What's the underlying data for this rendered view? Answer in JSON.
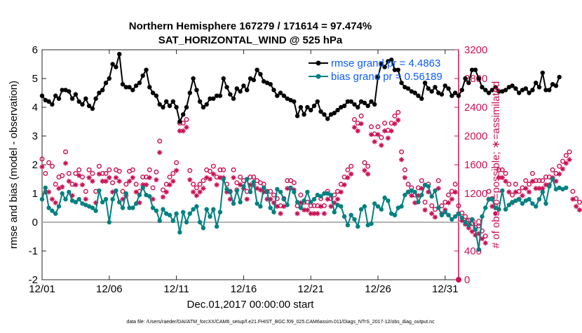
{
  "title_line1": "Northern Hemisphere 167279 / 171614 = 97.474%",
  "title_line2": "SAT_HORIZONTAL_WIND @ 525 hPa",
  "xlabel": "Dec.01,2017 00:00:00 start",
  "ylabel_left": "rmse and bias (model - observation)",
  "ylabel_right": "# of obs: o=possible; ∗=assimilated",
  "footer": "data file: /Users/raeder/DAI/ATM_forcXX/CAM6_setup/f.e21.FHIST_BGC.f09_025.CAM6assim.011/Diags_NTrS_2017-12/obs_diag_output.nc",
  "legend": {
    "rmse": "rmse grand pr = 4.4863",
    "bias": "bias grand pr = 0.56189"
  },
  "colors": {
    "rmse": "#000000",
    "bias": "#008080",
    "count": "#cc1155",
    "zero": "#b3b3b3",
    "legend_text": "#0a5cff"
  },
  "chart_data": {
    "type": "line",
    "x_tick_labels": [
      "12/01",
      "12/06",
      "12/11",
      "12/16",
      "12/21",
      "12/26",
      "12/31"
    ],
    "x_tick_days": [
      1,
      6,
      11,
      16,
      21,
      26,
      31
    ],
    "xlim": [
      1,
      32
    ],
    "ylim_left": [
      -2,
      6
    ],
    "y_ticks_left": [
      "-2",
      "-1",
      "0",
      "1",
      "2",
      "3",
      "4",
      "5",
      "6"
    ],
    "ylim_right": [
      0,
      3200
    ],
    "y_ticks_right": [
      "0",
      "400",
      "800",
      "1200",
      "1600",
      "2000",
      "2400",
      "2800",
      "3200"
    ],
    "grid": false,
    "legend_position": "top-right",
    "x_step_days": 0.25,
    "series": [
      {
        "name": "rmse",
        "axis": "left",
        "marker": "circle",
        "values": [
          4.4,
          4.25,
          4.2,
          4.1,
          4.4,
          4.3,
          4.6,
          4.6,
          4.55,
          4.3,
          4.45,
          4.2,
          4.1,
          4.3,
          4.05,
          3.95,
          4.3,
          4.5,
          4.6,
          4.85,
          5.0,
          5.5,
          5.4,
          5.85,
          4.8,
          4.7,
          4.7,
          4.6,
          4.75,
          4.85,
          5.1,
          5.3,
          4.7,
          4.5,
          4.4,
          4.1,
          4.0,
          4.2,
          4.05,
          4.2,
          4.0,
          3.5,
          3.75,
          4.0,
          4.5,
          5.0,
          4.6,
          4.2,
          4.0,
          4.1,
          4.3,
          4.3,
          4.4,
          4.4,
          5.0,
          4.7,
          4.45,
          4.3,
          4.65,
          4.55,
          4.75,
          4.6,
          5.0,
          4.95,
          5.3,
          5.15,
          4.9,
          4.85,
          4.8,
          4.6,
          4.4,
          4.5,
          4.4,
          4.3,
          4.25,
          4.2,
          3.7,
          4.0,
          3.75,
          4.0,
          3.9,
          4.05,
          4.2,
          3.85,
          3.75,
          3.6,
          3.75,
          3.8,
          3.9,
          4.0,
          4.05,
          4.2,
          4.2,
          4.1,
          4.0,
          4.2,
          4.15,
          4.05,
          4.2,
          4.1,
          5.05,
          5.5,
          5.4,
          5.6,
          5.65,
          5.3,
          5.3,
          4.85,
          4.7,
          4.65,
          4.55,
          4.5,
          4.4,
          4.3,
          4.85,
          4.65,
          4.55,
          4.7,
          4.5,
          4.45,
          4.75,
          4.65,
          4.4,
          4.5,
          4.4,
          4.6,
          5.0,
          4.85,
          5.3,
          5.3,
          5.0,
          4.7,
          4.6,
          4.5,
          4.6,
          4.7,
          4.55,
          4.55,
          4.6,
          4.7,
          4.75,
          4.65,
          4.5,
          4.6,
          4.65,
          4.5,
          4.6,
          4.85,
          4.7,
          5.2,
          4.6,
          4.6,
          4.8,
          4.75,
          5.05
        ]
      },
      {
        "name": "bias",
        "axis": "left",
        "marker": "circle",
        "values": [
          0.8,
          1.2,
          0.5,
          0.4,
          0.3,
          0.55,
          1.0,
          0.8,
          1.05,
          0.75,
          0.7,
          0.8,
          0.65,
          0.6,
          0.55,
          0.5,
          0.4,
          1.1,
          0.7,
          0.8,
          0.0,
          0.8,
          1.1,
          0.7,
          0.5,
          1.0,
          0.5,
          0.5,
          0.65,
          0.95,
          1.2,
          0.95,
          0.9,
          0.5,
          0.4,
          0.05,
          0.45,
          0.3,
          0.25,
          0.05,
          0.3,
          -0.35,
          0.35,
          0.0,
          0.3,
          0.45,
          0.55,
          0.0,
          -0.2,
          0.45,
          0.2,
          0.45,
          -0.15,
          0.35,
          1.5,
          1.15,
          1.05,
          0.65,
          1.1,
          0.7,
          1.25,
          1.5,
          1.05,
          1.4,
          0.65,
          0.55,
          1.2,
          1.05,
          0.5,
          0.35,
          1.15,
          1.05,
          0.8,
          0.6,
          1.2,
          1.05,
          0.7,
          0.5,
          0.75,
          1.05,
          0.7,
          0.8,
          0.95,
          0.9,
          1.0,
          1.0,
          0.95,
          0.35,
          0.6,
          0.55,
          0.2,
          -0.1,
          0.25,
          0.1,
          -0.15,
          0.45,
          0.55,
          -0.1,
          -0.05,
          0.65,
          0.55,
          0.45,
          0.85,
          0.75,
          0.3,
          0.25,
          0.5,
          0.55,
          0.95,
          1.05,
          1.1,
          1.05,
          0.7,
          0.95,
          1.3,
          1.25,
          0.9,
          1.1,
          0.5,
          0.25,
          0.35,
          0.25,
          0.1,
          0.2,
          0.3,
          0.15,
          0.0,
          -0.1,
          0.1,
          -0.25,
          -0.95,
          0.2,
          0.5,
          0.8,
          0.8,
          0.5,
          0.45,
          1.1,
          0.45,
          0.6,
          0.7,
          0.75,
          0.8,
          0.65,
          0.75,
          0.8,
          0.65,
          0.55,
          0.8,
          1.05,
          0.65,
          1.25,
          1.5,
          1.15,
          1.2,
          1.15,
          1.2
        ]
      },
      {
        "name": "possible",
        "axis": "right",
        "marker": "o",
        "values": [
          1650,
          1450,
          1600,
          1550,
          1300,
          1400,
          1420,
          1750,
          1450,
          1300,
          1450,
          1500,
          1400,
          1200,
          1500,
          1450,
          1200,
          1550,
          1450,
          1450,
          1500,
          1320,
          1500,
          1480,
          1200,
          1300,
          1480,
          1500,
          1300,
          1200,
          1400,
          1400,
          1500,
          1250,
          1470,
          1900,
          1220,
          1300,
          1400,
          1450,
          1600,
          2150,
          2150,
          2200,
          1490,
          1300,
          1250,
          1300,
          1350,
          1500,
          1480,
          1550,
          1400,
          1500,
          1500,
          1300,
          1200,
          1500,
          1320,
          1400,
          1350,
          1200,
          1400,
          1400,
          1350,
          1320,
          1300,
          1200,
          1200,
          1150,
          1100,
          1000,
          1100,
          1350,
          1350,
          1320,
          1000,
          1150,
          1050,
          1050,
          1000,
          1000,
          1000,
          1100,
          1000,
          1200,
          1100,
          1150,
          1200,
          1300,
          1400,
          1500,
          1550,
          2200,
          2150,
          2250,
          1600,
          1550,
          2100,
          2000,
          2100,
          1950,
          2150,
          2050,
          2150,
          2250,
          2300,
          1750,
          1500,
          1300,
          1250,
          1150,
          1250,
          1350,
          1050,
          1300,
          1000,
          950,
          1350,
          1000,
          1050,
          1150,
          1200,
          1300,
          1000,
          900,
          850,
          800,
          750,
          700,
          720,
          650,
          580,
          1200,
          1100,
          1000,
          1500,
          1500,
          1450,
          1300,
          1150,
          1300,
          1200,
          1250,
          1350,
          1300,
          1450,
          1350,
          1350,
          1350,
          1400,
          1400,
          1500,
          1450,
          1550,
          1620,
          1700,
          1750,
          1200,
          1100,
          1050
        ]
      },
      {
        "name": "assimilated",
        "axis": "right",
        "marker": "star",
        "values": [
          1600,
          1250,
          1250,
          1150,
          1100,
          1300,
          1320,
          1650,
          1400,
          1200,
          1350,
          1480,
          1350,
          1150,
          1450,
          1400,
          1100,
          1500,
          1400,
          1400,
          1450,
          1250,
          1450,
          1400,
          1150,
          1200,
          1400,
          1450,
          1250,
          1100,
          1350,
          1350,
          1450,
          1150,
          1420,
          1800,
          1180,
          1250,
          1350,
          1400,
          1550,
          2100,
          2100,
          2150,
          1420,
          1250,
          1200,
          1250,
          1300,
          1450,
          1430,
          1500,
          1350,
          1450,
          1450,
          1250,
          1150,
          1450,
          1280,
          1350,
          1300,
          1150,
          1350,
          1350,
          1300,
          1280,
          1250,
          1150,
          1150,
          1100,
          1050,
          950,
          1050,
          1300,
          1300,
          1280,
          950,
          1100,
          1000,
          1000,
          950,
          950,
          950,
          1050,
          950,
          1150,
          1050,
          1100,
          1150,
          1250,
          1350,
          1450,
          1500,
          2150,
          2100,
          2200,
          1550,
          1500,
          2050,
          1950,
          2050,
          1900,
          2100,
          2000,
          2100,
          2200,
          2250,
          1700,
          1450,
          1250,
          1200,
          1100,
          1200,
          1300,
          1000,
          1250,
          950,
          900,
          1300,
          950,
          1000,
          1100,
          1150,
          1250,
          950,
          850,
          800,
          750,
          700,
          650,
          670,
          600,
          540,
          1150,
          1050,
          950,
          1450,
          1450,
          1400,
          1250,
          1100,
          1250,
          1150,
          1200,
          1300,
          1250,
          1400,
          1300,
          1300,
          1300,
          1350,
          1350,
          1450,
          1400,
          1500,
          1570,
          1650,
          1700,
          1150,
          1050,
          1000
        ]
      }
    ]
  }
}
